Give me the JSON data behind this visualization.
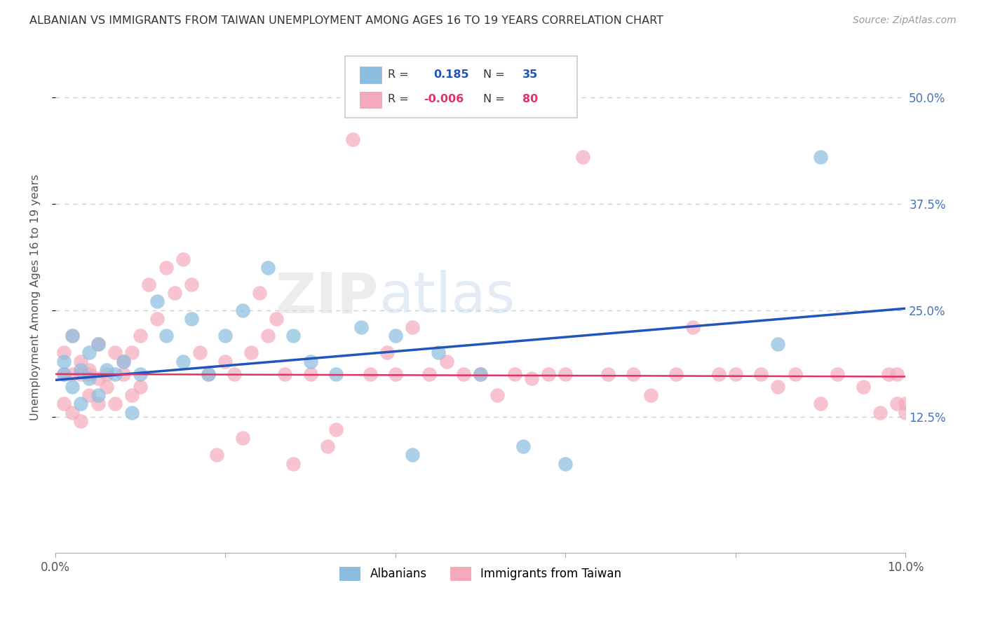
{
  "title": "ALBANIAN VS IMMIGRANTS FROM TAIWAN UNEMPLOYMENT AMONG AGES 16 TO 19 YEARS CORRELATION CHART",
  "source": "Source: ZipAtlas.com",
  "ylabel": "Unemployment Among Ages 16 to 19 years",
  "legend_albanians": "Albanians",
  "legend_taiwan": "Immigrants from Taiwan",
  "R_albanians": "0.185",
  "N_albanians": "35",
  "R_taiwan": "-0.006",
  "N_taiwan": "80",
  "color_blue": "#8BBDE0",
  "color_pink": "#F5AABB",
  "color_blue_line": "#2255BB",
  "color_pink_line": "#DD3366",
  "color_blue_text": "#2255BB",
  "watermark_zip": "ZIP",
  "watermark_atlas": "atlas",
  "xmin": 0.0,
  "xmax": 0.1,
  "ymin": -0.035,
  "ymax": 0.565,
  "blue_line_y0": 0.168,
  "blue_line_y1": 0.252,
  "pink_line_y0": 0.175,
  "pink_line_y1": 0.172,
  "albanians_x": [
    0.001,
    0.001,
    0.002,
    0.002,
    0.003,
    0.003,
    0.004,
    0.004,
    0.005,
    0.005,
    0.006,
    0.007,
    0.008,
    0.009,
    0.01,
    0.012,
    0.013,
    0.015,
    0.016,
    0.018,
    0.02,
    0.022,
    0.025,
    0.028,
    0.03,
    0.033,
    0.036,
    0.04,
    0.042,
    0.045,
    0.05,
    0.055,
    0.06,
    0.085,
    0.09
  ],
  "albanians_y": [
    0.19,
    0.175,
    0.22,
    0.16,
    0.18,
    0.14,
    0.2,
    0.17,
    0.15,
    0.21,
    0.18,
    0.175,
    0.19,
    0.13,
    0.175,
    0.26,
    0.22,
    0.19,
    0.24,
    0.175,
    0.22,
    0.25,
    0.3,
    0.22,
    0.19,
    0.175,
    0.23,
    0.22,
    0.08,
    0.2,
    0.175,
    0.09,
    0.07,
    0.21,
    0.43
  ],
  "taiwan_x": [
    0.001,
    0.001,
    0.001,
    0.002,
    0.002,
    0.002,
    0.003,
    0.003,
    0.003,
    0.004,
    0.004,
    0.004,
    0.005,
    0.005,
    0.005,
    0.006,
    0.006,
    0.007,
    0.007,
    0.008,
    0.008,
    0.009,
    0.009,
    0.01,
    0.01,
    0.011,
    0.012,
    0.013,
    0.014,
    0.015,
    0.016,
    0.017,
    0.018,
    0.019,
    0.02,
    0.021,
    0.022,
    0.023,
    0.024,
    0.025,
    0.026,
    0.027,
    0.028,
    0.03,
    0.032,
    0.033,
    0.035,
    0.037,
    0.039,
    0.04,
    0.042,
    0.044,
    0.046,
    0.048,
    0.05,
    0.052,
    0.054,
    0.056,
    0.058,
    0.06,
    0.062,
    0.065,
    0.068,
    0.07,
    0.073,
    0.075,
    0.078,
    0.08,
    0.083,
    0.085,
    0.087,
    0.09,
    0.092,
    0.095,
    0.097,
    0.098,
    0.099,
    0.099,
    0.1,
    0.1
  ],
  "taiwan_y": [
    0.2,
    0.175,
    0.14,
    0.22,
    0.175,
    0.13,
    0.19,
    0.175,
    0.12,
    0.18,
    0.175,
    0.15,
    0.17,
    0.14,
    0.21,
    0.175,
    0.16,
    0.2,
    0.14,
    0.19,
    0.175,
    0.2,
    0.15,
    0.22,
    0.16,
    0.28,
    0.24,
    0.3,
    0.27,
    0.31,
    0.28,
    0.2,
    0.175,
    0.08,
    0.19,
    0.175,
    0.1,
    0.2,
    0.27,
    0.22,
    0.24,
    0.175,
    0.07,
    0.175,
    0.09,
    0.11,
    0.45,
    0.175,
    0.2,
    0.175,
    0.23,
    0.175,
    0.19,
    0.175,
    0.175,
    0.15,
    0.175,
    0.17,
    0.175,
    0.175,
    0.43,
    0.175,
    0.175,
    0.15,
    0.175,
    0.23,
    0.175,
    0.175,
    0.175,
    0.16,
    0.175,
    0.14,
    0.175,
    0.16,
    0.13,
    0.175,
    0.14,
    0.175,
    0.14,
    0.13
  ]
}
